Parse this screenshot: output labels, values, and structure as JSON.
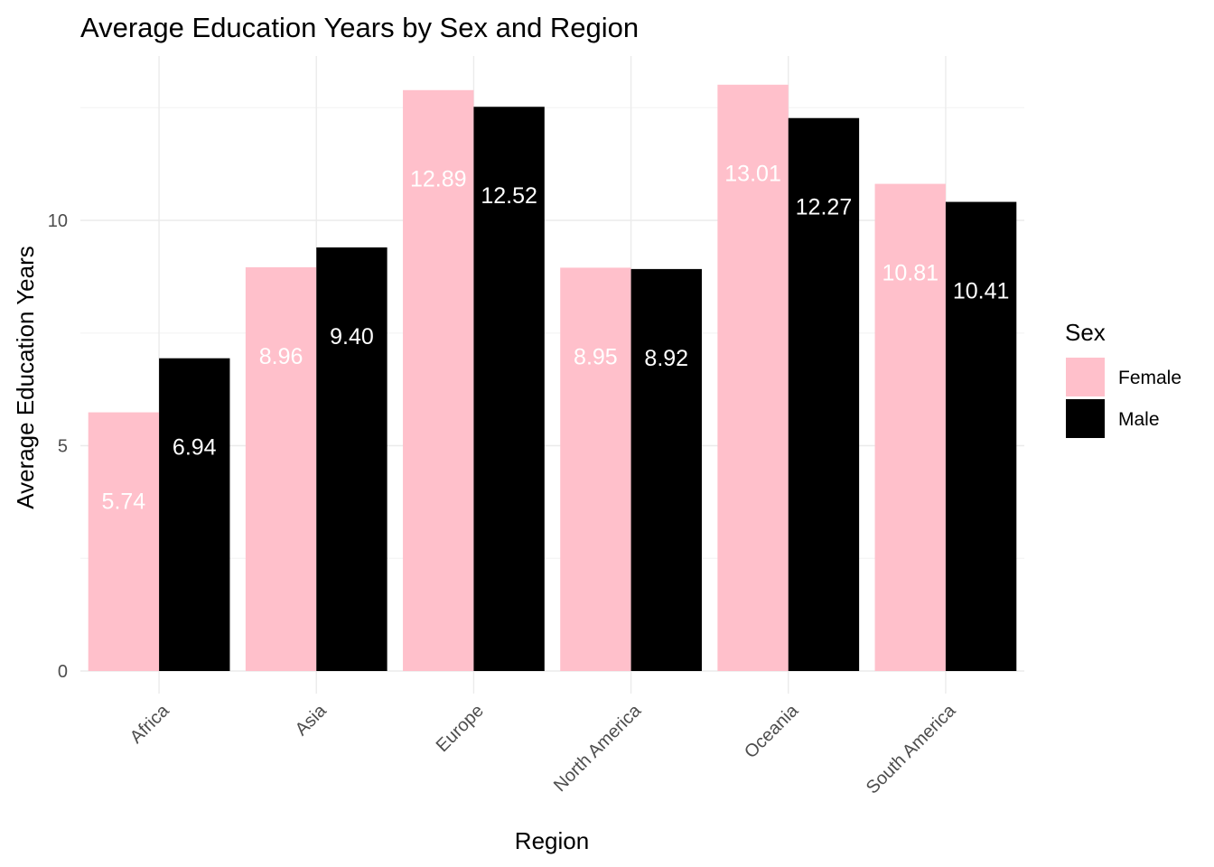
{
  "chart_data": {
    "type": "bar",
    "title": "Average Education Years by Sex and Region",
    "xlabel": "Region",
    "ylabel": "Average Education Years",
    "categories": [
      "Africa",
      "Asia",
      "Europe",
      "North America",
      "Oceania",
      "South America"
    ],
    "series": [
      {
        "name": "Female",
        "color": "#FFC0CB",
        "values": [
          5.74,
          8.96,
          12.89,
          8.95,
          13.01,
          10.81
        ],
        "labels": [
          "5.74",
          "8.96",
          "12.89",
          "8.95",
          "13.01",
          "10.81"
        ]
      },
      {
        "name": "Male",
        "color": "#000000",
        "values": [
          6.94,
          9.4,
          12.52,
          8.92,
          12.27,
          10.41
        ],
        "labels": [
          "6.94",
          "9.40",
          "12.52",
          "8.92",
          "12.27",
          "10.41"
        ]
      }
    ],
    "yticks": [
      0,
      5,
      10
    ],
    "ylim": [
      -0.5,
      13.6
    ],
    "grid": true,
    "legend": {
      "title": "Sex",
      "position": "right"
    },
    "xtick_rotation": 45
  }
}
